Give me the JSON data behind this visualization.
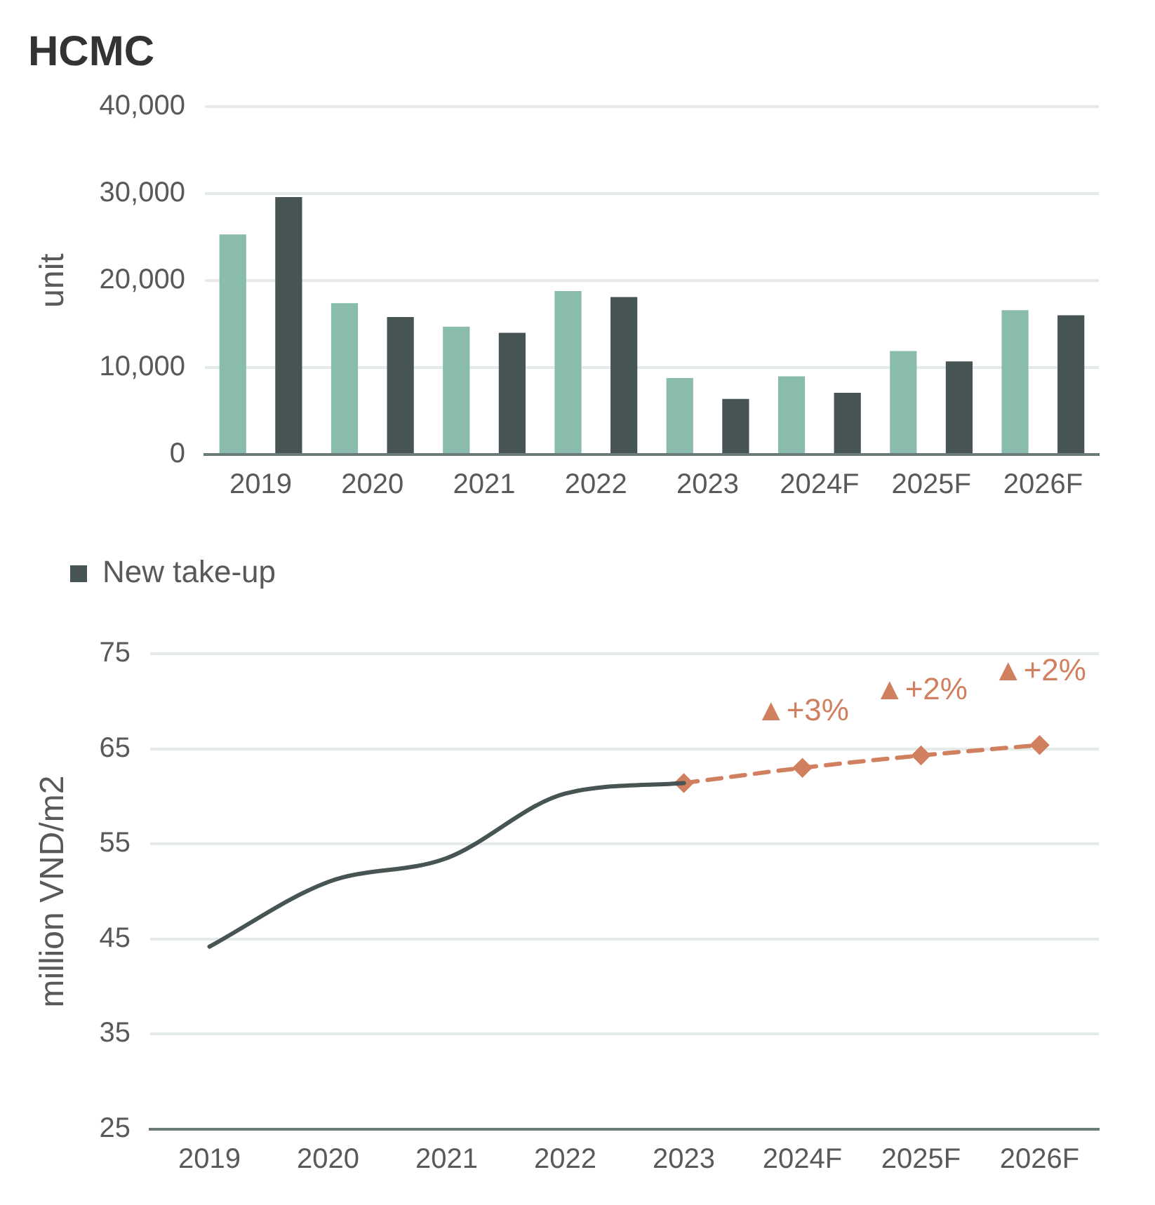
{
  "chart_data": [
    {
      "type": "bar",
      "title": "HCMC",
      "ylabel": "unit",
      "categories": [
        "2019",
        "2020",
        "2021",
        "2022",
        "2023",
        "2024F",
        "2025F",
        "2026F"
      ],
      "series": [
        {
          "color": "#8abcae",
          "values": [
            25300,
            17400,
            14700,
            18800,
            8800,
            9000,
            11900,
            16600
          ]
        },
        {
          "name": "New take-up",
          "color": "#465453",
          "values": [
            29600,
            15800,
            14000,
            18100,
            6400,
            7100,
            10700,
            16000
          ]
        }
      ],
      "ylim": [
        0,
        40000
      ],
      "yticks": [
        {
          "value": 0,
          "label": "0"
        },
        {
          "value": 10000,
          "label": "10,000"
        },
        {
          "value": 20000,
          "label": "20,000"
        },
        {
          "value": 30000,
          "label": "30,000"
        },
        {
          "value": 40000,
          "label": "40,000"
        }
      ],
      "grid": "y",
      "legend": "bottom"
    },
    {
      "type": "line",
      "ylabel": "million VND/m2",
      "categories": [
        "2019",
        "2020",
        "2021",
        "2022",
        "2023",
        "2024F",
        "2025F",
        "2026F"
      ],
      "series": [
        {
          "color": "#465453",
          "line_style": "solid",
          "marker": "none",
          "values": [
            44.2,
            51.0,
            53.5,
            60.3,
            61.4,
            null,
            null,
            null
          ]
        },
        {
          "color": "#d0805e",
          "line_style": "dashed",
          "marker": "diamond",
          "values": [
            null,
            null,
            null,
            null,
            61.4,
            63.0,
            64.3,
            65.4
          ]
        }
      ],
      "ylim": [
        25,
        75
      ],
      "yticks": [
        25,
        35,
        45,
        55,
        65,
        75
      ],
      "grid": "y",
      "annotations": [
        "▲+3%",
        "▲+2%",
        "▲+2%"
      ]
    }
  ]
}
